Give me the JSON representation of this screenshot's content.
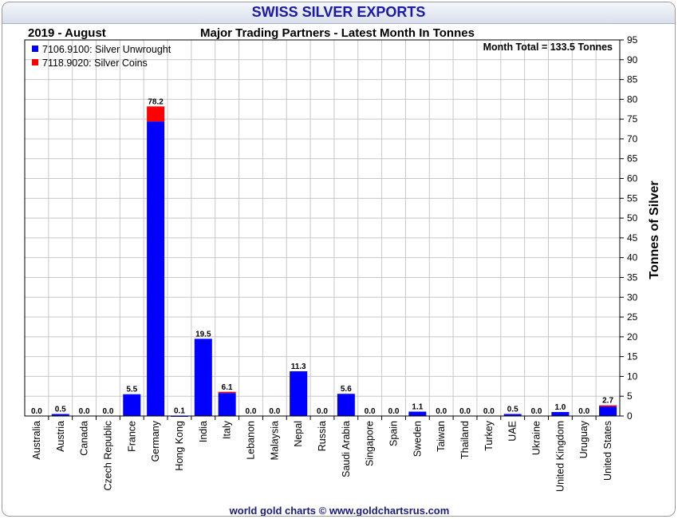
{
  "header": {
    "title": "SWISS SILVER EXPORTS",
    "period": "2019 - August",
    "subtitle": "Major Trading Partners - Latest Month In Tonnes"
  },
  "footer": "world gold charts © www.goldchartsrus.com",
  "chart_data": {
    "type": "bar",
    "stacked": true,
    "categories": [
      "Australia",
      "Austria",
      "Canada",
      "Czech Republic",
      "France",
      "Germany",
      "Hong Kong",
      "India",
      "Italy",
      "Lebanon",
      "Malaysia",
      "Nepal",
      "Russia",
      "Saudi Arabia",
      "Singapore",
      "Spain",
      "Sweden",
      "Taiwan",
      "Thailand",
      "Turkey",
      "UAE",
      "Ukraine",
      "United Kingdom",
      "Uruguay",
      "United States"
    ],
    "series": [
      {
        "name": "7106.9100: Silver Unwrought",
        "color": "#0000ff",
        "values": [
          0.0,
          0.5,
          0.0,
          0.0,
          5.5,
          74.4,
          0.1,
          19.5,
          5.8,
          0.0,
          0.0,
          11.3,
          0.0,
          5.6,
          0.0,
          0.0,
          1.1,
          0.0,
          0.0,
          0.0,
          0.5,
          0.0,
          1.0,
          0.0,
          2.4
        ]
      },
      {
        "name": "7118.9020: Silver Coins",
        "color": "#ff0000",
        "values": [
          0.0,
          0.0,
          0.0,
          0.0,
          0.0,
          3.8,
          0.0,
          0.0,
          0.3,
          0.0,
          0.0,
          0.0,
          0.0,
          0.0,
          0.0,
          0.0,
          0.0,
          0.0,
          0.0,
          0.0,
          0.0,
          0.0,
          0.0,
          0.0,
          0.3
        ]
      }
    ],
    "totals": [
      "0.0",
      "0.5",
      "0.0",
      "0.0",
      "5.5",
      "78.2",
      "0.1",
      "19.5",
      "6.1",
      "0.0",
      "0.0",
      "11.3",
      "0.0",
      "5.6",
      "0.0",
      "0.0",
      "1.1",
      "0.0",
      "0.0",
      "0.0",
      "0.5",
      "0.0",
      "1.0",
      "0.0",
      "2.7"
    ],
    "ylabel": "Tonnes of Silver",
    "ylim": [
      0,
      95
    ],
    "yticks": [
      0,
      5,
      10,
      15,
      20,
      25,
      30,
      35,
      40,
      45,
      50,
      55,
      60,
      65,
      70,
      75,
      80,
      85,
      90,
      95
    ],
    "grid": true,
    "legend_position": "top-left",
    "annotation": "Month Total = 133.5 Tonnes"
  }
}
